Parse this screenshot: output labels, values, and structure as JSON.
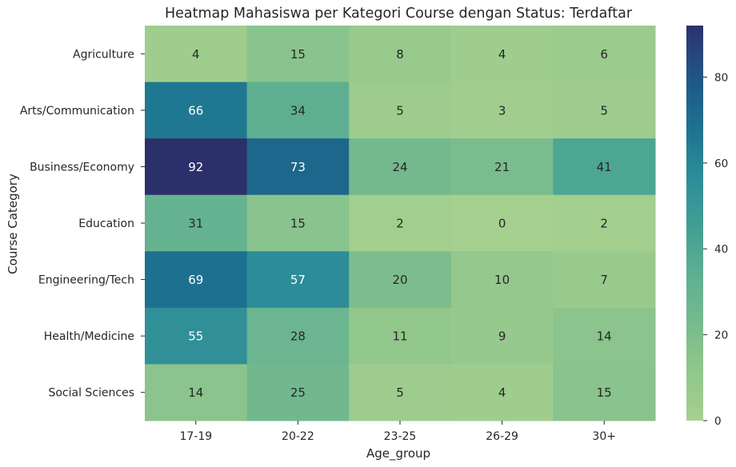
{
  "chart_data": {
    "type": "heatmap",
    "title": "Heatmap Mahasiswa per Kategori Course dengan Status: Terdaftar",
    "xlabel": "Age_group",
    "ylabel": "Course Category",
    "x_categories": [
      "17-19",
      "20-22",
      "23-25",
      "26-29",
      "30+"
    ],
    "y_categories": [
      "Agriculture",
      "Arts/Communication",
      "Business/Economy",
      "Education",
      "Engineering/Tech",
      "Health/Medicine",
      "Social Sciences"
    ],
    "values": [
      [
        4,
        15,
        8,
        4,
        6
      ],
      [
        66,
        34,
        5,
        3,
        5
      ],
      [
        92,
        73,
        24,
        21,
        41
      ],
      [
        31,
        15,
        2,
        0,
        2
      ],
      [
        69,
        57,
        20,
        10,
        7
      ],
      [
        55,
        28,
        11,
        9,
        14
      ],
      [
        14,
        25,
        5,
        4,
        15
      ]
    ],
    "colorbar": {
      "min": 0,
      "max": 92,
      "ticks": [
        0,
        20,
        40,
        60,
        80
      ]
    },
    "colormap": "crest",
    "annotation_colors": {
      "dark": "#262626",
      "light": "#ffffff"
    }
  }
}
